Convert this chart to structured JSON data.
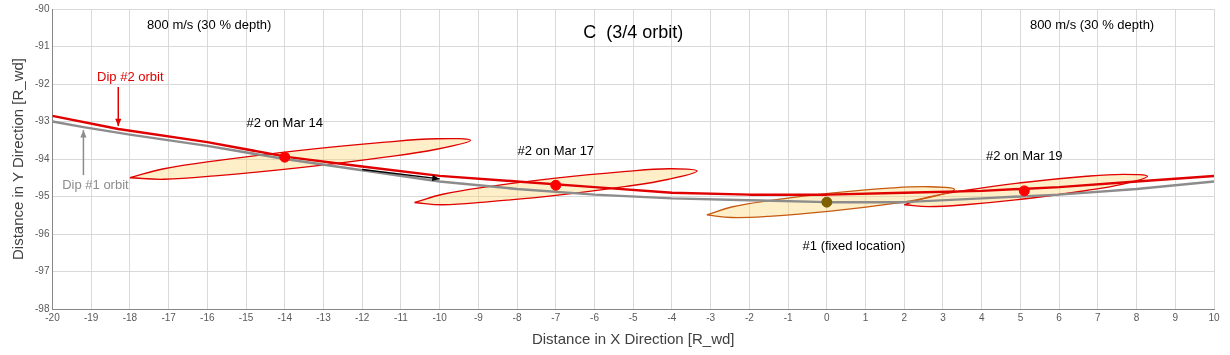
{
  "chart_data": {
    "type": "line",
    "title": "C  (3/4 orbit)",
    "xlabel": "Distance in X Direction [R_wd]",
    "ylabel": "Distance in Y Direction [R_wd]",
    "xlim": [
      -20,
      10
    ],
    "xticks": [
      -20,
      -19,
      -18,
      -17,
      -16,
      -15,
      -14,
      -13,
      -12,
      -11,
      -10,
      -9,
      -8,
      -7,
      -6,
      -5,
      -4,
      -3,
      -2,
      -1,
      0,
      1,
      2,
      3,
      4,
      5,
      6,
      7,
      8,
      9,
      10
    ],
    "ylim": [
      -98,
      -90
    ],
    "yticks": [
      -98,
      -97,
      -96,
      -95,
      -94,
      -93,
      -92,
      -91,
      -90
    ],
    "grid": true,
    "legend": false,
    "series": [
      {
        "type": "line",
        "name": "Dip #1 orbit",
        "color": "#8c8c8c",
        "x": [
          -20,
          -19.2,
          -18,
          -16,
          -14,
          -12,
          -10,
          -8,
          -6,
          -4,
          -2,
          0,
          2,
          4,
          6,
          8,
          10
        ],
        "values": [
          -93.0,
          -93.15,
          -93.35,
          -93.65,
          -94.0,
          -94.3,
          -94.6,
          -94.8,
          -94.95,
          -95.05,
          -95.1,
          -95.15,
          -95.15,
          -95.05,
          -94.95,
          -94.8,
          -94.6
        ]
      },
      {
        "type": "line",
        "name": "Dip #2 orbit",
        "color": "#e00000",
        "x": [
          -20,
          -18.3,
          -16,
          -13.9,
          -12,
          -10,
          -8,
          -6,
          -4,
          -2,
          0,
          2,
          4,
          6,
          8,
          10
        ],
        "values": [
          -92.85,
          -93.2,
          -93.55,
          -93.95,
          -94.2,
          -94.45,
          -94.6,
          -94.75,
          -94.9,
          -94.95,
          -94.95,
          -94.9,
          -94.85,
          -94.75,
          -94.6,
          -94.45
        ]
      },
      {
        "type": "area",
        "color": "#e00000",
        "x": [
          -18.0,
          -17.12,
          -15.8,
          -13.6,
          -11.4,
          -10.08,
          -9.2,
          -10.08,
          -11.4,
          -13.6,
          -15.8,
          -17.12,
          -18.0
        ],
        "values": [
          -94.5,
          -94.26,
          -94.05,
          -93.77,
          -93.55,
          -93.46,
          -93.5,
          -93.74,
          -93.95,
          -94.23,
          -94.45,
          -94.54,
          -94.5
        ]
      },
      {
        "type": "area",
        "color": "#e00000",
        "x": [
          -10.65,
          -9.92,
          -8.83,
          -7.0,
          -5.18,
          -4.08,
          -3.35,
          -4.08,
          -5.18,
          -7.0,
          -8.83,
          -9.92,
          -10.65
        ],
        "values": [
          -95.16,
          -94.94,
          -94.75,
          -94.51,
          -94.33,
          -94.26,
          -94.32,
          -94.54,
          -94.73,
          -94.97,
          -95.15,
          -95.22,
          -95.16
        ]
      },
      {
        "type": "area",
        "color": "#c55a11",
        "x": [
          -3.1,
          -2.46,
          -1.5,
          0.1,
          1.7,
          2.66,
          3.3,
          2.66,
          1.7,
          0.1,
          -1.5,
          -2.46,
          -3.1
        ],
        "values": [
          -95.49,
          -95.28,
          -95.11,
          -94.91,
          -94.77,
          -94.74,
          -94.81,
          -95.02,
          -95.19,
          -95.39,
          -95.53,
          -95.56,
          -95.49
        ]
      },
      {
        "type": "area",
        "color": "#e00000",
        "x": [
          2.0,
          2.63,
          3.57,
          5.14,
          6.71,
          7.65,
          8.28,
          7.65,
          6.71,
          5.14,
          3.57,
          2.63,
          2.0
        ],
        "values": [
          -95.22,
          -95.01,
          -94.84,
          -94.62,
          -94.46,
          -94.41,
          -94.46,
          -94.67,
          -94.84,
          -95.06,
          -95.22,
          -95.27,
          -95.22
        ]
      },
      {
        "type": "scatter",
        "color": "#ff0000",
        "x": [
          -14,
          -7,
          5.1
        ],
        "values": [
          -93.95,
          -94.7,
          -94.85
        ]
      },
      {
        "type": "scatter",
        "color": "#7f6000",
        "x": [
          0
        ],
        "values": [
          -95.15
        ]
      }
    ],
    "annotations": [
      "800 m/s (30 % depth)",
      "800 m/s (30 % depth)",
      {
        "text": "#2 on Mar 14",
        "x": -14,
        "y": -93.95
      },
      {
        "text": "#2 on Mar 17",
        "x": -7,
        "y": -94.7
      },
      {
        "text": "#2 on Mar 19",
        "x": 5.1,
        "y": -94.85
      },
      "#1 (fixed location)"
    ]
  }
}
